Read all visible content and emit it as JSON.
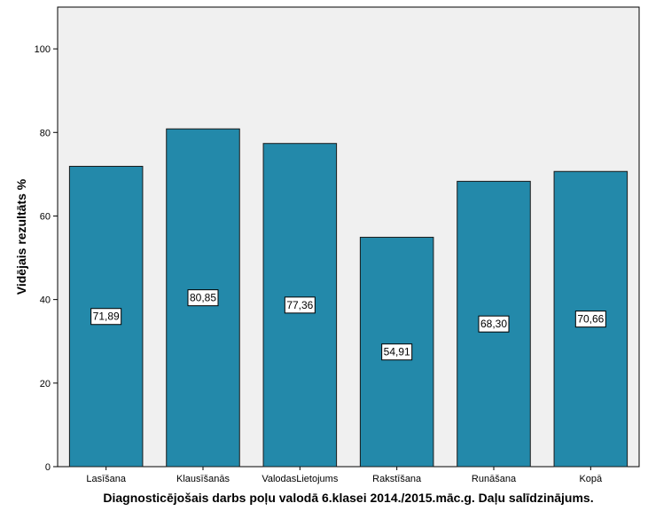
{
  "chart_data": {
    "type": "bar",
    "categories": [
      "Lasīšana",
      "Klausīšanās",
      "ValodasLietojums",
      "Rakstīšana",
      "Runāšana",
      "Kopā"
    ],
    "values": [
      71.89,
      80.85,
      77.36,
      54.91,
      68.3,
      70.66
    ],
    "data_labels": [
      "71,89",
      "80,85",
      "77,36",
      "54,91",
      "68,30",
      "70,66"
    ],
    "title": "",
    "xlabel": "Diagnosticējošais darbs poļu valodā 6.klasei 2014./2015.māc.g. Daļu salīdzinājums.",
    "ylabel": "Vidējais rezultāts %",
    "ylim": [
      0,
      110
    ],
    "yticks": [
      0,
      20,
      40,
      60,
      80,
      100
    ],
    "grid": false,
    "legend": "none",
    "colors": {
      "bar_fill": "#2389aa",
      "bar_stroke": "#1a1a1a",
      "plot_background": "#f0f0f0",
      "label_box": "#ffffff"
    }
  }
}
